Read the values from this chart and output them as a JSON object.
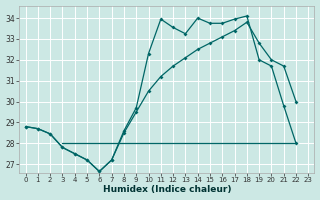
{
  "title": "",
  "xlabel": "Humidex (Indice chaleur)",
  "background_color": "#cce8e4",
  "grid_color": "#ffffff",
  "line_color": "#006666",
  "x_min": -0.5,
  "x_max": 23.5,
  "y_min": 26.6,
  "y_max": 34.6,
  "yticks": [
    27,
    28,
    29,
    30,
    31,
    32,
    33,
    34
  ],
  "xticks": [
    0,
    1,
    2,
    3,
    4,
    5,
    6,
    7,
    8,
    9,
    10,
    11,
    12,
    13,
    14,
    15,
    16,
    17,
    18,
    19,
    20,
    21,
    22,
    23
  ],
  "line_jagged_x": [
    0,
    1,
    2,
    3,
    4,
    5,
    6,
    7,
    8,
    9,
    10,
    11,
    12,
    13,
    14,
    15,
    16,
    17,
    18,
    19,
    20,
    21,
    22
  ],
  "line_jagged_y": [
    28.8,
    28.7,
    28.45,
    27.8,
    27.5,
    27.2,
    26.65,
    27.2,
    28.6,
    29.7,
    32.3,
    33.95,
    33.55,
    33.25,
    34.0,
    33.75,
    33.75,
    33.95,
    34.1,
    32.0,
    31.7,
    29.8,
    28.0
  ],
  "line_smooth_x": [
    0,
    1,
    2,
    3,
    4,
    5,
    6,
    7,
    8,
    9,
    10,
    11,
    12,
    13,
    14,
    15,
    16,
    17,
    18,
    19,
    20,
    21,
    22
  ],
  "line_smooth_y": [
    28.8,
    28.7,
    28.45,
    27.8,
    27.5,
    27.2,
    26.65,
    27.2,
    28.5,
    29.5,
    30.5,
    31.2,
    31.7,
    32.1,
    32.5,
    32.8,
    33.1,
    33.4,
    33.8,
    32.8,
    32.0,
    31.7,
    30.0
  ],
  "line_flat_x": [
    3,
    4,
    5,
    6,
    7,
    8,
    9,
    10,
    11,
    12,
    13,
    14,
    15,
    16,
    17,
    18,
    19,
    20,
    21,
    22
  ],
  "line_flat_y": [
    28.0,
    28.0,
    28.0,
    28.0,
    28.0,
    28.0,
    28.0,
    28.0,
    28.0,
    28.0,
    28.0,
    28.0,
    28.0,
    28.0,
    28.0,
    28.0,
    28.0,
    28.0,
    28.0,
    28.0
  ]
}
